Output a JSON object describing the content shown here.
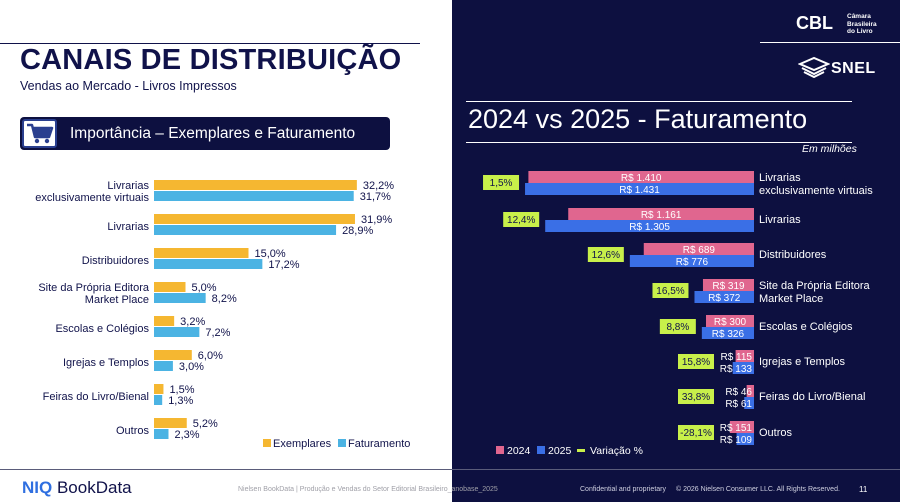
{
  "header": {
    "title": "CANAIS DE DISTRIBUIÇÃO",
    "subtitle": "Vendas ao Mercado - Livros Impressos",
    "section_title": "Importância – Exemplares e Faturamento",
    "right_title": "2024 vs 2025 - Faturamento",
    "right_note": "Em milhões"
  },
  "logos": {
    "cbl_text_1": "Câmara",
    "cbl_text_2": "Brasileira",
    "cbl_text_3": "do Livro",
    "snel_text": "SNEL"
  },
  "colors": {
    "exemplares": "#f5b731",
    "faturamento": "#4bb3e3",
    "y2024": "#e0668f",
    "y2025": "#3a6fe6",
    "variacao": "#c8f04a",
    "navy": "#0d1040"
  },
  "chart_data": [
    {
      "type": "bar",
      "orientation": "horizontal",
      "categories": [
        "Livrarias exclusivamente virtuais",
        "Livrarias",
        "Distribuidores",
        "Site da Própria Editora Market Place",
        "Escolas e Colégios",
        "Igrejas e Templos",
        "Feiras do Livro/Bienal",
        "Outros"
      ],
      "category_lines": [
        [
          "Livrarias",
          "exclusivamente virtuais"
        ],
        [
          "Livrarias"
        ],
        [
          "Distribuidores"
        ],
        [
          "Site da Própria Editora",
          "Market Place"
        ],
        [
          "Escolas e Colégios"
        ],
        [
          "Igrejas e Templos"
        ],
        [
          "Feiras do Livro/Bienal"
        ],
        [
          "Outros"
        ]
      ],
      "series": [
        {
          "name": "Exemplares",
          "values": [
            32.2,
            31.9,
            15.0,
            5.0,
            3.2,
            6.0,
            1.5,
            5.2
          ],
          "labels": [
            "32,2%",
            "31,9%",
            "15,0%",
            "5,0%",
            "3,2%",
            "6,0%",
            "1,5%",
            "5,2%"
          ]
        },
        {
          "name": "Faturamento",
          "values": [
            31.7,
            28.9,
            17.2,
            8.2,
            7.2,
            3.0,
            1.3,
            2.3
          ],
          "labels": [
            "31,7%",
            "28,9%",
            "17,2%",
            "8,2%",
            "7,2%",
            "3,0%",
            "1,3%",
            "2,3%"
          ]
        }
      ],
      "legend": "bottom-right"
    },
    {
      "type": "bar",
      "orientation": "horizontal",
      "title": "2024 vs 2025 - Faturamento",
      "unit": "Em milhões",
      "categories": [
        "Livrarias exclusivamente virtuais",
        "Livrarias",
        "Distribuidores",
        "Site da Própria Editora Market Place",
        "Escolas e Colégios",
        "Igrejas e Templos",
        "Feiras do Livro/Bienal",
        "Outros"
      ],
      "category_lines": [
        [
          "Livrarias",
          "exclusivamente virtuais"
        ],
        [
          "Livrarias"
        ],
        [
          "Distribuidores"
        ],
        [
          "Site da Própria Editora",
          "Market Place"
        ],
        [
          "Escolas e Colégios"
        ],
        [
          "Igrejas e Templos"
        ],
        [
          "Feiras do Livro/Bienal"
        ],
        [
          "Outros"
        ]
      ],
      "series": [
        {
          "name": "2024",
          "values": [
            1410,
            1161,
            689,
            319,
            300,
            115,
            46,
            151
          ],
          "labels": [
            "R$ 1.410",
            "R$ 1.161",
            "R$ 689",
            "R$ 319",
            "R$ 300",
            "R$ 115",
            "R$ 46",
            "R$ 151"
          ]
        },
        {
          "name": "2025",
          "values": [
            1431,
            1305,
            776,
            372,
            326,
            133,
            61,
            109
          ],
          "labels": [
            "R$ 1.431",
            "R$ 1.305",
            "R$ 776",
            "R$ 372",
            "R$ 326",
            "R$ 133",
            "R$ 61",
            "R$ 109"
          ]
        },
        {
          "name": "Variação %",
          "values": [
            1.5,
            12.4,
            12.6,
            16.5,
            8.8,
            15.8,
            33.8,
            -28.1
          ],
          "labels": [
            "1,5%",
            "12,4%",
            "12,6%",
            "16,5%",
            "8,8%",
            "15,8%",
            "33,8%",
            "-28,1%"
          ]
        }
      ],
      "legend": "bottom-left"
    }
  ],
  "footer": {
    "brand_niq": "NIQ",
    "brand_rest": "BookData",
    "source": "Nielsen BookData | Produção e Vendas do Setor Editorial Brasileiro_anobase_2025",
    "confidential": "Confidential and proprietary",
    "copyright": "© 2026 Nielsen Consumer LLC. All Rights Reserved.",
    "page": "11"
  }
}
